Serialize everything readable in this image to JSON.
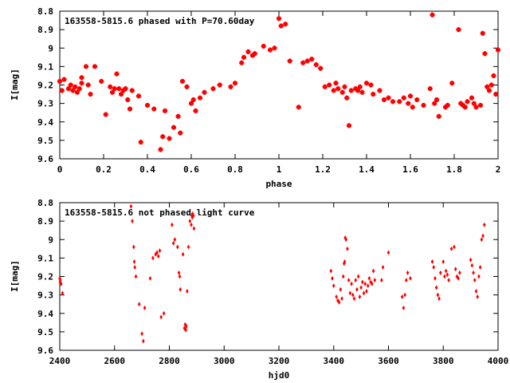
{
  "chart_data": [
    {
      "type": "scatter",
      "title": "163558-5815.6 phased with P=70.60day",
      "xlabel": "phase",
      "ylabel": "I[mag]",
      "xlim": [
        0,
        2
      ],
      "ylim": [
        8.8,
        9.6
      ],
      "y_inverted": true,
      "xticks": [
        "0",
        "0.2",
        "0.4",
        "0.6",
        "0.8",
        "1",
        "1.2",
        "1.4",
        "1.6",
        "1.8",
        "2"
      ],
      "yticks": [
        "8.8",
        "8.9",
        "9",
        "9.1",
        "9.2",
        "9.3",
        "9.4",
        "9.5",
        "9.6"
      ],
      "grid": false,
      "marker_color": "#ff0000",
      "series": [
        {
          "x": [
            0.0,
            0.01,
            0.02,
            0.04,
            0.05,
            0.06,
            0.07,
            0.08,
            0.09,
            0.1,
            0.1,
            0.12,
            0.13,
            0.14,
            0.16,
            0.19,
            0.21,
            0.23,
            0.24,
            0.25,
            0.26,
            0.27,
            0.28,
            0.29,
            0.3,
            0.31,
            0.32,
            0.33,
            0.36,
            0.37,
            0.4,
            0.43,
            0.46,
            0.47,
            0.48,
            0.5,
            0.52,
            0.54,
            0.55,
            0.56,
            0.58,
            0.6,
            0.61,
            0.62,
            0.64,
            0.66,
            0.7,
            0.73,
            0.78,
            0.8,
            0.83,
            0.84,
            0.86,
            0.88,
            0.89,
            0.93,
            0.96,
            0.98,
            1.0,
            1.01,
            1.03,
            1.05,
            1.09,
            1.11,
            1.13,
            1.15,
            1.17,
            1.19,
            1.21,
            1.23,
            1.25,
            1.26,
            1.27,
            1.29,
            1.3,
            1.31,
            1.32,
            1.33,
            1.35,
            1.36,
            1.37,
            1.38,
            1.4,
            1.42,
            1.43,
            1.46,
            1.48,
            1.5,
            1.52,
            1.55,
            1.57,
            1.59,
            1.6,
            1.61,
            1.63,
            1.66,
            1.69,
            1.7,
            1.71,
            1.72,
            1.73,
            1.76,
            1.77,
            1.79,
            1.82,
            1.83,
            1.84,
            1.85,
            1.86,
            1.88,
            1.89,
            1.9,
            1.92,
            1.93,
            1.94,
            1.95,
            1.96,
            1.97,
            1.98,
            1.99,
            2.0
          ],
          "y": [
            9.18,
            9.23,
            9.17,
            9.22,
            9.2,
            9.23,
            9.21,
            9.24,
            9.22,
            9.19,
            9.16,
            9.1,
            9.2,
            9.25,
            9.1,
            9.18,
            9.36,
            9.21,
            9.24,
            9.22,
            9.14,
            9.22,
            9.25,
            9.23,
            9.22,
            9.28,
            9.33,
            9.23,
            9.26,
            9.51,
            9.31,
            9.33,
            9.55,
            9.48,
            9.34,
            9.49,
            9.43,
            9.37,
            9.46,
            9.18,
            9.21,
            9.3,
            9.28,
            9.34,
            9.27,
            9.24,
            9.22,
            9.2,
            9.21,
            9.19,
            9.08,
            9.05,
            9.02,
            9.04,
            9.03,
            8.99,
            9.01,
            9.0,
            8.84,
            8.88,
            8.87,
            9.07,
            9.32,
            9.08,
            9.07,
            9.06,
            9.09,
            9.11,
            9.21,
            9.2,
            9.23,
            9.19,
            9.22,
            9.24,
            9.21,
            9.27,
            9.42,
            9.23,
            9.22,
            9.23,
            9.21,
            9.24,
            9.19,
            9.2,
            9.25,
            9.23,
            9.28,
            9.27,
            9.29,
            9.29,
            9.27,
            9.3,
            9.26,
            9.32,
            9.28,
            9.31,
            9.22,
            8.82,
            9.3,
            9.28,
            9.37,
            9.32,
            9.31,
            9.19,
            8.9,
            9.3,
            9.31,
            9.32,
            9.29,
            9.27,
            9.3,
            9.32,
            9.31,
            8.92,
            9.03,
            9.21,
            9.23,
            9.2,
            9.15,
            9.25,
            9.01
          ],
          "marker": "plus-bold"
        }
      ]
    },
    {
      "type": "scatter",
      "title": "163558-5815.6 not phased light curve",
      "xlabel": "hjd0",
      "ylabel": "I[mag]",
      "xlim": [
        2400,
        4000
      ],
      "ylim": [
        8.8,
        9.6
      ],
      "y_inverted": true,
      "xticks": [
        "2400",
        "2600",
        "2800",
        "3000",
        "3200",
        "3400",
        "3600",
        "3800",
        "4000"
      ],
      "yticks": [
        "8.8",
        "8.9",
        "9",
        "9.1",
        "9.2",
        "9.3",
        "9.4",
        "9.5",
        "9.6"
      ],
      "grid": false,
      "marker_color": "#ff0000",
      "series": [
        {
          "x": [
            2400,
            2401,
            2402,
            2405,
            2410,
            2660,
            2665,
            2670,
            2672,
            2674,
            2678,
            2690,
            2700,
            2705,
            2710,
            2730,
            2740,
            2750,
            2755,
            2760,
            2765,
            2770,
            2780,
            2810,
            2815,
            2820,
            2830,
            2835,
            2838,
            2840,
            2850,
            2855,
            2858,
            2860,
            2862,
            2865,
            2870,
            2875,
            2880,
            2882,
            2884,
            2885,
            2888,
            2890,
            3390,
            3395,
            3400,
            3410,
            3415,
            3420,
            3425,
            3430,
            3435,
            3438,
            3440,
            3442,
            3445,
            3450,
            3455,
            3460,
            3465,
            3470,
            3475,
            3480,
            3485,
            3490,
            3495,
            3500,
            3505,
            3510,
            3515,
            3520,
            3525,
            3530,
            3535,
            3540,
            3545,
            3550,
            3575,
            3580,
            3600,
            3650,
            3655,
            3660,
            3665,
            3670,
            3680,
            3760,
            3765,
            3770,
            3775,
            3780,
            3785,
            3790,
            3800,
            3805,
            3810,
            3815,
            3820,
            3830,
            3840,
            3845,
            3850,
            3855,
            3860,
            3900,
            3905,
            3910,
            3915,
            3920,
            3925,
            3930,
            3935,
            3940,
            3945,
            3950
          ],
          "y": [
            9.21,
            9.23,
            9.22,
            9.24,
            9.29,
            8.82,
            8.9,
            9.04,
            9.12,
            9.15,
            9.2,
            9.35,
            9.51,
            9.55,
            9.37,
            9.21,
            9.1,
            9.08,
            9.07,
            9.09,
            9.06,
            9.42,
            9.4,
            8.92,
            9.02,
            9.0,
            9.04,
            9.18,
            9.2,
            9.27,
            9.08,
            9.48,
            9.46,
            9.49,
            9.47,
            9.28,
            9.04,
            8.9,
            8.92,
            8.87,
            8.88,
            8.86,
            8.87,
            8.94,
            9.17,
            9.21,
            9.25,
            9.31,
            9.33,
            9.34,
            9.27,
            9.32,
            9.2,
            9.13,
            9.12,
            8.99,
            9.0,
            9.05,
            9.22,
            9.29,
            9.24,
            9.3,
            9.32,
            9.22,
            9.27,
            9.2,
            9.31,
            9.26,
            9.23,
            9.29,
            9.24,
            9.28,
            9.25,
            9.21,
            9.23,
            9.24,
            9.17,
            9.22,
            9.22,
            9.15,
            9.07,
            9.31,
            9.37,
            9.3,
            9.22,
            9.18,
            9.21,
            9.12,
            9.15,
            9.21,
            9.26,
            9.3,
            9.32,
            9.18,
            9.12,
            9.2,
            9.17,
            9.19,
            9.22,
            9.05,
            9.04,
            9.16,
            9.2,
            9.21,
            9.18,
            9.11,
            9.14,
            9.18,
            9.22,
            9.28,
            9.31,
            9.2,
            9.15,
            9.0,
            8.98,
            8.92
          ],
          "marker": "diamond"
        }
      ]
    }
  ]
}
